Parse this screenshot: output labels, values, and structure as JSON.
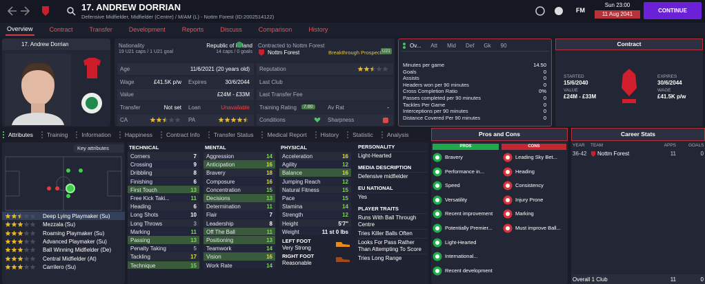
{
  "header": {
    "name": "17. ANDREW DORRIAN",
    "subtitle": "Defensive Midfielder, Midfielder (Centre) / M/AM (L) - Nottm Forest (ID:2002514122)",
    "day_time": "Sun 23:00",
    "date": "11 Aug 2041",
    "logo": "FM",
    "continue": "CONTINUE"
  },
  "nav": [
    "Overview",
    "Contract",
    "Transfer",
    "Development",
    "Reports",
    "Discuss",
    "Comparison",
    "History"
  ],
  "profile": {
    "name": "17. Andrew Dorrian"
  },
  "info": {
    "nationality_label": "Nationality",
    "nationality": "Republic of Ireland",
    "u21": "19 U21 caps / 1 U21 goal",
    "caps": "14 caps / 0 goals",
    "contracted_label": "Contracted to Nottm Forest",
    "club": "Nottm Forest",
    "prospect": "Breakthrough Prospect",
    "badge": "U21",
    "left_rows": [
      [
        {
          "label": "Age",
          "value": "11/6/2021 (20 years old)"
        }
      ],
      [
        {
          "label": "Wage",
          "value": "£41.5K p/w"
        },
        {
          "label": "Expires",
          "value": "30/6/2044"
        }
      ],
      [
        {
          "label": "Value",
          "value": "£24M - £33M"
        }
      ],
      [
        {
          "label": "Transfer",
          "value": "Not set"
        },
        {
          "label": "Loan",
          "value": "Unavailable"
        }
      ],
      [
        {
          "label": "CA",
          "stars": 2.5
        },
        {
          "label": "PA",
          "stars": 4.5
        }
      ]
    ],
    "right_rows": [
      [
        {
          "label": "Reputation",
          "stars": 2.5
        }
      ],
      [
        {
          "label": "Last Club"
        }
      ],
      [
        {
          "label": "Last Transfer Fee"
        }
      ],
      [
        {
          "label": "Training Rating",
          "value": "7.80"
        },
        {
          "label": "Av Rat",
          "value": "-"
        }
      ],
      [
        {
          "label": "Conditions"
        },
        {
          "label": "Sharpness"
        }
      ]
    ]
  },
  "stats": {
    "tabs": [
      "Ov...",
      "Att",
      "Mid",
      "Def",
      "Gk",
      "90"
    ],
    "rows": [
      {
        "label": "Minutes per game",
        "value": "14.50"
      },
      {
        "label": "Goals",
        "value": 0
      },
      {
        "label": "Assists",
        "value": 0
      },
      {
        "label": "Headers won per 90 minutes",
        "value": 0
      },
      {
        "label": "Cross Completion Ratio",
        "value": "0%"
      },
      {
        "label": "Passes completed per 90 minutes",
        "value": 0
      },
      {
        "label": "Tackles Per Game",
        "value": 0
      },
      {
        "label": "Interceptions per 90 minutes",
        "value": 0
      },
      {
        "label": "Distance Covered Per 90 minutes",
        "value": 0
      }
    ]
  },
  "contract": {
    "title": "Contract",
    "items": [
      {
        "label": "STARTED",
        "value": "15/6/2040"
      },
      {
        "label": "VALUE",
        "value": "£24M - £33M"
      },
      {
        "label": "EXPIRES",
        "value": "30/6/2044"
      },
      {
        "label": "WAGE",
        "value": "£41.5K p/w"
      }
    ]
  },
  "subtabs": [
    "Attributes",
    "Training",
    "Information",
    "Happiness",
    "Contract Info",
    "Transfer Status",
    "Medical Report",
    "History",
    "Statistic",
    "Analysis"
  ],
  "key_attributes": "Key attributes",
  "roles": [
    {
      "name": "Deep Lying Playmaker (Su)",
      "stars": 2.5
    },
    {
      "name": "Mezzala (Su)",
      "stars": 3
    },
    {
      "name": "Roaming Playmaker (Su)",
      "stars": 3
    },
    {
      "name": "Advanced Playmaker (Su)",
      "stars": 3
    },
    {
      "name": "Ball Winning Midfielder (De)",
      "stars": 3
    },
    {
      "name": "Central Midfielder (At)",
      "stars": 3
    },
    {
      "name": "Carrilero (Su)",
      "stars": 3
    }
  ],
  "attributes": {
    "technical": {
      "title": "TECHNICAL",
      "items": [
        {
          "name": "Corners",
          "value": 7
        },
        {
          "name": "Crossing",
          "value": 9
        },
        {
          "name": "Dribbling",
          "value": 8
        },
        {
          "name": "Finishing",
          "value": 6
        },
        {
          "name": "First Touch",
          "value": 13,
          "key": true
        },
        {
          "name": "Free Kick Taki...",
          "value": 11
        },
        {
          "name": "Heading",
          "value": 6
        },
        {
          "name": "Long Shots",
          "value": 10
        },
        {
          "name": "Long Throws",
          "value": 3
        },
        {
          "name": "Marking",
          "value": 11
        },
        {
          "name": "Passing",
          "value": 13,
          "key": true
        },
        {
          "name": "Penalty Taking",
          "value": 5
        },
        {
          "name": "Tackling",
          "value": 17
        },
        {
          "name": "Technique",
          "value": 15,
          "key": true
        }
      ]
    },
    "mental": {
      "title": "MENTAL",
      "items": [
        {
          "name": "Aggression",
          "value": 14
        },
        {
          "name": "Anticipation",
          "value": 16,
          "key": true
        },
        {
          "name": "Bravery",
          "value": 18
        },
        {
          "name": "Composure",
          "value": 16
        },
        {
          "name": "Concentration",
          "value": 15
        },
        {
          "name": "Decisions",
          "value": 13,
          "key": true
        },
        {
          "name": "Determination",
          "value": 11
        },
        {
          "name": "Flair",
          "value": 7
        },
        {
          "name": "Leadership",
          "value": 8
        },
        {
          "name": "Off The Ball",
          "value": 11,
          "key": true
        },
        {
          "name": "Positioning",
          "value": 13,
          "key": true
        },
        {
          "name": "Teamwork",
          "value": 14
        },
        {
          "name": "Vision",
          "value": 16,
          "key": true
        },
        {
          "name": "Work Rate",
          "value": 14
        }
      ]
    },
    "physical": {
      "title": "PHYSICAL",
      "items": [
        {
          "name": "Acceleration",
          "value": 16
        },
        {
          "name": "Agility",
          "value": 12
        },
        {
          "name": "Balance",
          "value": 16,
          "key": true
        },
        {
          "name": "Jumping Reach",
          "value": 12
        },
        {
          "name": "Natural Fitness",
          "value": 15
        },
        {
          "name": "Pace",
          "value": 15
        },
        {
          "name": "Stamina",
          "value": 14
        },
        {
          "name": "Strength",
          "value": 12
        },
        {
          "name": "Height",
          "value": "5'7\""
        },
        {
          "name": "Weight",
          "value": "11 st 0 lbs"
        }
      ]
    },
    "feet": [
      {
        "label": "LEFT FOOT",
        "value": "Very Strong"
      },
      {
        "label": "RIGHT FOOT",
        "value": "Reasonable"
      }
    ]
  },
  "personality": [
    {
      "title": "PERSONALITY",
      "lines": [
        "Light-Hearted"
      ]
    },
    {
      "title": "MEDIA DESCRIPTION",
      "lines": [
        "Defensive midfielder"
      ]
    },
    {
      "title": "EU NATIONAL",
      "lines": [
        "Yes"
      ]
    },
    {
      "title": "PLAYER TRAITS",
      "lines": [
        "Runs With Ball Through Centre",
        "Tries Killer Balls Often",
        "Looks For Pass Rather Than Attempting To Score",
        "Tries Long Range"
      ]
    }
  ],
  "pros_cons": {
    "title": "Pros and Cons",
    "pros_label": "PROS",
    "cons_label": "CONS",
    "pros": [
      "Bravery",
      "Performance in...",
      "Speed",
      "Versatility",
      "Recent improvement",
      "Potentially Premier...",
      "Light-Hearted",
      "International...",
      "Recent development"
    ],
    "cons": [
      "Leading Sky Bet...",
      "Heading",
      "Consistency",
      "Injury Prone",
      "Marking",
      "Must improve Ball..."
    ]
  },
  "career": {
    "title": "Career Stats",
    "headers": [
      "YEAR",
      "TEAM",
      "APPS",
      "GOALS"
    ],
    "rows": [
      [
        "36-42",
        "Nottm Forest",
        11,
        0
      ]
    ],
    "total": [
      "Overall 1 Club",
      11,
      0
    ]
  }
}
